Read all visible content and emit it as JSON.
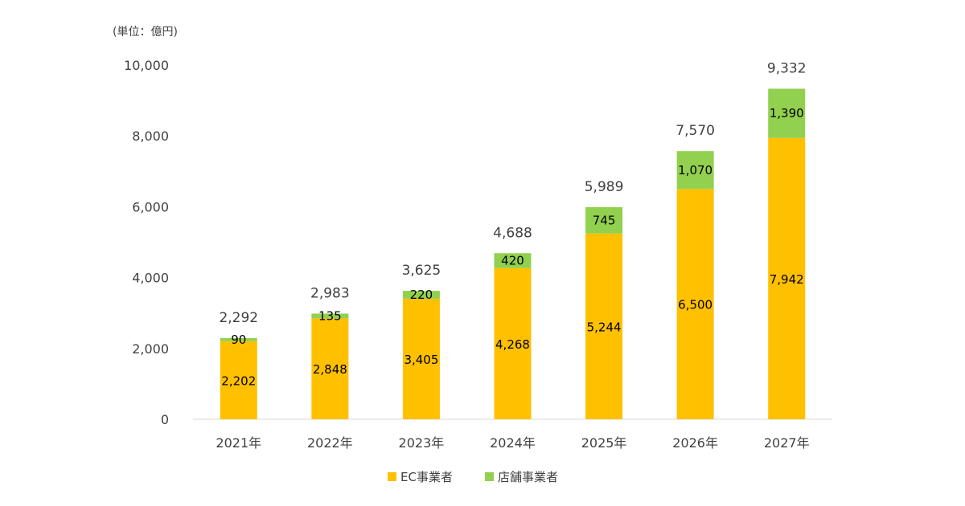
{
  "chart_data": {
    "type": "bar",
    "stacked": true,
    "unit_label": "(単位：億円)",
    "categories": [
      "2021年",
      "2022年",
      "2023年",
      "2024年",
      "2025年",
      "2026年",
      "2027年"
    ],
    "series": [
      {
        "name": "EC事業者",
        "color": "#FFC000",
        "values": [
          2202,
          2848,
          3405,
          4268,
          5244,
          6500,
          7942
        ]
      },
      {
        "name": "店舗事業者",
        "color": "#92D050",
        "values": [
          90,
          135,
          220,
          420,
          745,
          1070,
          1390
        ]
      }
    ],
    "totals": [
      2292,
      2983,
      3625,
      4688,
      5989,
      7570,
      9332
    ],
    "ylim": [
      0,
      10000
    ],
    "yticks": [
      0,
      2000,
      4000,
      6000,
      8000,
      10000
    ],
    "grid": false,
    "legend_position": "bottom"
  }
}
